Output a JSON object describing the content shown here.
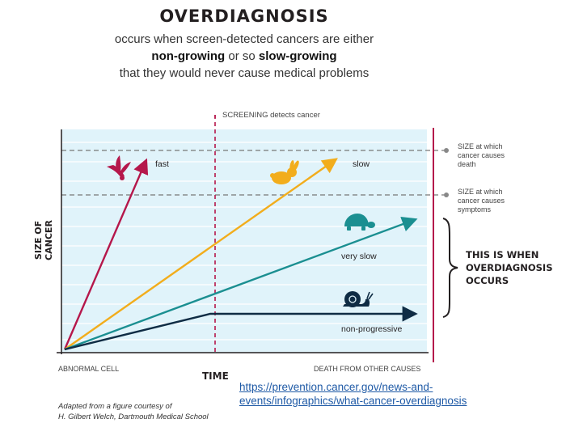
{
  "header": {
    "title": "OVERDIAGNOSIS",
    "line1": "occurs when screen-detected cancers are either",
    "line2_bold1": "non-growing",
    "line2_mid": " or so ",
    "line2_bold2": "slow-growing",
    "line3": "that they would never cause medical problems"
  },
  "chart": {
    "screening_label": "SCREENING detects cancer",
    "y_axis_label": "SIZE OF CANCER",
    "x_axis_label": "TIME",
    "x_start_label": "ABNORMAL CELL",
    "x_end_label": "DEATH FROM OTHER CAUSES",
    "threshold_death": [
      "SIZE at which",
      "cancer causes",
      "death"
    ],
    "threshold_symptoms": [
      "SIZE at which",
      "cancer causes",
      "symptoms"
    ],
    "overdiagnosis_note": [
      "THIS IS WHEN",
      "OVERDIAGNOSIS",
      "OCCURS"
    ],
    "series": [
      {
        "name": "fast",
        "color": "#b5174b",
        "icon": "bird-icon"
      },
      {
        "name": "slow",
        "color": "#f2ad1c",
        "icon": "rabbit-icon"
      },
      {
        "name": "very slow",
        "color": "#1b8f91",
        "icon": "turtle-icon"
      },
      {
        "name": "non-progressive",
        "color": "#0f2c44",
        "icon": "snail-icon"
      }
    ]
  },
  "credit": [
    "Adapted from a figure courtesy of",
    "H. Gilbert Welch, Dartmouth Medical School"
  ],
  "link": {
    "line1": "https://prevention.cancer.gov/news-and-",
    "line2": "events/infographics/what-cancer-overdiagnosis"
  }
}
